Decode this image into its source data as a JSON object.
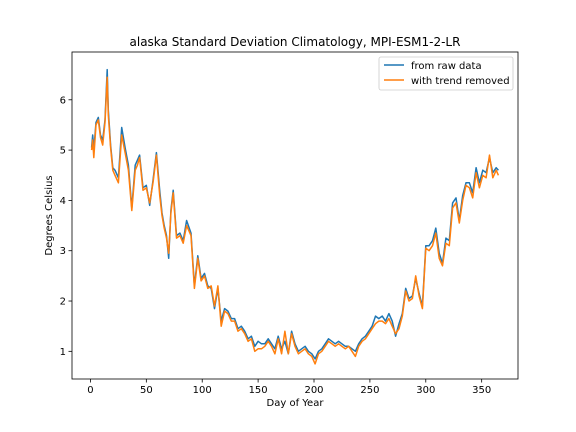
{
  "chart_data": {
    "type": "line",
    "title": "alaska Standard Deviation Climatology, MPI-ESM1-2-LR",
    "xlabel": "Day of Year",
    "ylabel": "Degrees Celsius",
    "xlim": [
      -16.5,
      382.5
    ],
    "ylim": [
      0.45,
      6.95
    ],
    "xticks": [
      0,
      50,
      100,
      150,
      200,
      250,
      300,
      350
    ],
    "yticks": [
      1,
      2,
      3,
      4,
      5,
      6
    ],
    "grid": false,
    "legend_position": "top-right",
    "x": [
      1,
      2,
      3,
      5,
      7,
      9,
      11,
      13,
      15,
      16,
      18,
      20,
      22,
      25,
      28,
      31,
      34,
      37,
      40,
      42,
      44,
      47,
      50,
      53,
      56,
      59,
      62,
      64,
      66,
      68,
      70,
      72,
      74,
      77,
      80,
      83,
      86,
      90,
      93,
      96,
      99,
      102,
      105,
      108,
      111,
      114,
      117,
      120,
      123,
      126,
      129,
      132,
      135,
      138,
      141,
      144,
      147,
      150,
      153,
      156,
      159,
      162,
      165,
      168,
      171,
      174,
      177,
      180,
      183,
      186,
      189,
      192,
      195,
      198,
      201,
      204,
      207,
      210,
      213,
      216,
      219,
      222,
      225,
      228,
      231,
      234,
      237,
      240,
      243,
      246,
      249,
      252,
      255,
      258,
      261,
      264,
      267,
      270,
      273,
      276,
      279,
      282,
      285,
      288,
      291,
      294,
      297,
      300,
      303,
      306,
      309,
      312,
      315,
      318,
      321,
      324,
      327,
      330,
      333,
      336,
      339,
      342,
      345,
      348,
      351,
      354,
      357,
      360,
      363,
      365
    ],
    "series": [
      {
        "name": "from raw data",
        "color": "#1f77b4",
        "values": [
          5.05,
          5.3,
          5.0,
          5.55,
          5.65,
          5.3,
          5.2,
          5.6,
          6.6,
          5.8,
          5.1,
          4.65,
          4.6,
          4.45,
          5.45,
          5.05,
          4.7,
          3.85,
          4.7,
          4.8,
          4.9,
          4.25,
          4.3,
          3.9,
          4.4,
          4.95,
          4.2,
          3.75,
          3.5,
          3.3,
          2.85,
          3.8,
          4.2,
          3.3,
          3.35,
          3.2,
          3.6,
          3.35,
          2.3,
          2.9,
          2.45,
          2.55,
          2.3,
          2.25,
          1.85,
          2.25,
          1.6,
          1.85,
          1.8,
          1.65,
          1.65,
          1.45,
          1.5,
          1.4,
          1.25,
          1.3,
          1.1,
          1.2,
          1.15,
          1.15,
          1.25,
          1.15,
          1.05,
          1.3,
          1.05,
          1.2,
          0.95,
          1.4,
          1.15,
          1.0,
          1.05,
          1.1,
          1.0,
          0.95,
          0.85,
          1.0,
          1.05,
          1.15,
          1.25,
          1.2,
          1.15,
          1.2,
          1.15,
          1.1,
          1.1,
          1.05,
          1.0,
          1.15,
          1.25,
          1.3,
          1.4,
          1.5,
          1.7,
          1.65,
          1.7,
          1.6,
          1.75,
          1.6,
          1.3,
          1.55,
          1.75,
          2.25,
          2.05,
          2.1,
          2.45,
          2.15,
          1.9,
          3.1,
          3.1,
          3.2,
          3.45,
          2.95,
          2.75,
          3.25,
          3.2,
          3.95,
          4.05,
          3.6,
          4.1,
          4.35,
          4.35,
          4.15,
          4.65,
          4.35,
          4.6,
          4.55,
          4.85,
          4.55,
          4.65,
          4.6
        ]
      },
      {
        "name": "with trend removed",
        "color": "#ff7f0e",
        "values": [
          5.0,
          5.2,
          4.85,
          5.5,
          5.6,
          5.25,
          5.1,
          5.55,
          6.45,
          5.7,
          5.05,
          4.6,
          4.5,
          4.35,
          5.3,
          4.95,
          4.6,
          3.8,
          4.6,
          4.7,
          4.85,
          4.2,
          4.25,
          3.95,
          4.35,
          4.9,
          4.1,
          3.7,
          3.45,
          3.25,
          2.95,
          3.75,
          4.15,
          3.25,
          3.3,
          3.15,
          3.5,
          3.3,
          2.25,
          2.85,
          2.4,
          2.5,
          2.25,
          2.3,
          1.9,
          2.3,
          1.5,
          1.8,
          1.75,
          1.6,
          1.6,
          1.4,
          1.45,
          1.35,
          1.2,
          1.25,
          1.0,
          1.05,
          1.05,
          1.1,
          1.2,
          1.1,
          0.95,
          1.25,
          0.95,
          1.4,
          0.95,
          1.35,
          1.1,
          0.95,
          1.0,
          1.05,
          0.95,
          0.9,
          0.75,
          0.95,
          1.0,
          1.1,
          1.2,
          1.15,
          1.1,
          1.15,
          1.1,
          1.05,
          1.1,
          1.0,
          0.9,
          1.1,
          1.2,
          1.25,
          1.35,
          1.45,
          1.55,
          1.6,
          1.6,
          1.55,
          1.65,
          1.5,
          1.35,
          1.45,
          1.7,
          2.2,
          2.0,
          2.05,
          2.5,
          2.1,
          1.85,
          3.05,
          3.0,
          3.1,
          3.35,
          2.85,
          2.7,
          3.15,
          3.1,
          3.85,
          3.95,
          3.55,
          4.0,
          4.3,
          4.25,
          4.05,
          4.55,
          4.25,
          4.5,
          4.45,
          4.9,
          4.45,
          4.6,
          4.5
        ]
      }
    ]
  }
}
